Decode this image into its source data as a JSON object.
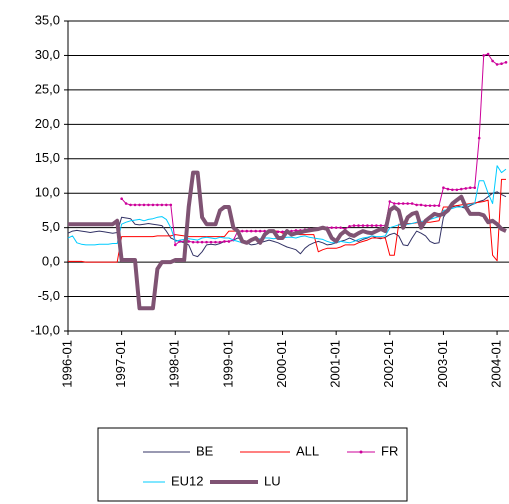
{
  "chart_data": {
    "type": "line",
    "categories": [
      "1996-01",
      null,
      null,
      null,
      null,
      null,
      null,
      null,
      null,
      null,
      null,
      null,
      "1997-01",
      null,
      null,
      null,
      null,
      null,
      null,
      null,
      null,
      null,
      null,
      null,
      "1998-01",
      null,
      null,
      null,
      null,
      null,
      null,
      null,
      null,
      null,
      null,
      null,
      "1999-01",
      null,
      null,
      null,
      null,
      null,
      null,
      null,
      null,
      null,
      null,
      null,
      "2000-01",
      null,
      null,
      null,
      null,
      null,
      null,
      null,
      null,
      null,
      null,
      null,
      "2001-01",
      null,
      null,
      null,
      null,
      null,
      null,
      null,
      null,
      null,
      null,
      null,
      "2002-01",
      null,
      null,
      null,
      null,
      null,
      null,
      null,
      null,
      null,
      null,
      null,
      "2003-01",
      null,
      null,
      null,
      null,
      null,
      null,
      null,
      null,
      null,
      null,
      null,
      "2004-01",
      null,
      null
    ],
    "ylim": [
      -10,
      35
    ],
    "yticks": [
      {
        "value": -10,
        "label": "-10,0"
      },
      {
        "value": -5,
        "label": "-5,0"
      },
      {
        "value": 0,
        "label": "0,0"
      },
      {
        "value": 5,
        "label": "5,0"
      },
      {
        "value": 10,
        "label": "10,0"
      },
      {
        "value": 15,
        "label": "15,0"
      },
      {
        "value": 20,
        "label": "20,0"
      },
      {
        "value": 25,
        "label": "25,0"
      },
      {
        "value": 30,
        "label": "30,0"
      },
      {
        "value": 35,
        "label": "35,0"
      }
    ],
    "grid": true,
    "legend": "bottom",
    "series": [
      {
        "name": "BE",
        "color": "#333366",
        "line_width": 1,
        "marker": false,
        "values": [
          4.2,
          4.5,
          4.6,
          4.5,
          4.4,
          4.3,
          4.4,
          4.5,
          4.4,
          4.3,
          4.2,
          4.3,
          6.5,
          6.4,
          6.3,
          5.5,
          5.4,
          5.5,
          5.6,
          5.5,
          5.4,
          5.3,
          4.5,
          3.5,
          3.2,
          3.0,
          2.8,
          2.5,
          1.0,
          0.8,
          1.5,
          2.5,
          2.6,
          2.5,
          2.7,
          3.0,
          3.0,
          3.2,
          3.5,
          3.3,
          2.8,
          2.5,
          2.6,
          2.8,
          3.0,
          3.2,
          3.0,
          2.8,
          2.5,
          2.2,
          2.0,
          1.8,
          1.2,
          2.0,
          2.5,
          2.8,
          3.0,
          2.8,
          2.5,
          2.6,
          2.8,
          3.0,
          3.2,
          3.5,
          3.2,
          3.0,
          3.3,
          3.5,
          3.8,
          3.5,
          3.4,
          3.6,
          4.0,
          4.2,
          3.8,
          2.5,
          2.4,
          3.5,
          4.5,
          4.2,
          3.8,
          3.0,
          2.7,
          2.8,
          6.5,
          7.5,
          8.0,
          8.2,
          8.0,
          7.8,
          8.2,
          8.5,
          8.8,
          9.0,
          9.5,
          10.0,
          10.2,
          9.8,
          9.5
        ]
      },
      {
        "name": "ALL",
        "color": "#ff0000",
        "line_width": 1,
        "marker": false,
        "values": [
          0.1,
          0.1,
          0.1,
          0.1,
          0,
          0,
          0,
          0,
          0,
          0,
          0,
          0,
          3.7,
          3.7,
          3.7,
          3.7,
          3.7,
          3.7,
          3.7,
          3.7,
          3.8,
          3.8,
          3.8,
          3.8,
          4.0,
          3.9,
          3.8,
          3.7,
          3.7,
          3.7,
          3.7,
          3.7,
          3.7,
          3.7,
          3.7,
          3.7,
          4.5,
          4.5,
          4.5,
          4.5,
          4.5,
          4.5,
          4.5,
          4.5,
          4.5,
          4.5,
          4.5,
          4.5,
          4.2,
          4.2,
          4.1,
          4.1,
          4.0,
          4.0,
          4.0,
          4.0,
          1.5,
          1.8,
          2.0,
          2.0,
          2.0,
          2.2,
          2.5,
          2.5,
          2.5,
          2.8,
          3.0,
          3.2,
          3.5,
          3.5,
          3.5,
          3.5,
          1.0,
          1.0,
          5.5,
          5.5,
          5.6,
          5.6,
          5.7,
          5.7,
          5.8,
          5.8,
          5.9,
          6.0,
          8.0,
          8.0,
          8.1,
          8.2,
          8.3,
          8.4,
          8.5,
          8.6,
          8.7,
          8.8,
          9.0,
          1.0,
          0.2,
          12.0,
          12.0
        ]
      },
      {
        "name": "FR",
        "color": "#cc0099",
        "line_width": 1,
        "marker": true,
        "values": [
          null,
          null,
          null,
          null,
          null,
          null,
          null,
          null,
          null,
          null,
          null,
          null,
          9.2,
          8.5,
          8.3,
          8.3,
          8.3,
          8.3,
          8.3,
          8.3,
          8.3,
          8.3,
          8.3,
          8.3,
          2.5,
          3.0,
          3.0,
          3.0,
          2.9,
          2.9,
          2.9,
          2.9,
          2.9,
          2.9,
          2.9,
          3.0,
          3.0,
          3.2,
          4.5,
          4.5,
          4.5,
          4.5,
          4.5,
          4.5,
          4.5,
          4.5,
          4.4,
          4.4,
          4.4,
          4.5,
          4.5,
          4.6,
          4.6,
          4.7,
          4.8,
          4.8,
          4.9,
          4.9,
          5.0,
          5.0,
          5.0,
          5.0,
          4.8,
          5.2,
          5.3,
          5.3,
          5.3,
          5.3,
          5.3,
          5.3,
          5.3,
          5.3,
          8.8,
          8.5,
          8.5,
          8.5,
          8.5,
          8.5,
          8.3,
          8.3,
          8.2,
          8.2,
          8.2,
          8.2,
          10.8,
          10.6,
          10.5,
          10.5,
          10.6,
          10.7,
          10.8,
          10.8,
          18.0,
          30.0,
          30.2,
          29.2,
          28.7,
          28.8,
          29.0
        ]
      },
      {
        "name": "EU12",
        "color": "#00ccff",
        "line_width": 1,
        "marker": false,
        "values": [
          3.5,
          3.8,
          2.8,
          2.6,
          2.5,
          2.5,
          2.5,
          2.6,
          2.6,
          2.6,
          2.7,
          2.7,
          5.5,
          5.8,
          6.0,
          6.1,
          6.2,
          6.0,
          6.2,
          6.3,
          6.5,
          6.6,
          6.2,
          5.0,
          3.0,
          3.2,
          3.3,
          3.4,
          3.3,
          3.2,
          3.5,
          3.6,
          3.5,
          3.4,
          3.6,
          3.5,
          3.5,
          3.2,
          3.0,
          2.8,
          3.0,
          3.2,
          3.3,
          3.4,
          3.5,
          3.5,
          3.4,
          3.5,
          3.5,
          3.6,
          3.6,
          3.5,
          3.7,
          3.8,
          3.6,
          3.5,
          3.4,
          3.3,
          3.0,
          2.8,
          2.8,
          3.0,
          2.9,
          2.8,
          3.0,
          3.3,
          3.5,
          3.6,
          3.8,
          3.7,
          3.7,
          3.8,
          5.0,
          5.2,
          5.4,
          5.4,
          5.5,
          5.6,
          5.8,
          5.9,
          6.0,
          6.2,
          6.4,
          6.6,
          7.5,
          7.6,
          7.8,
          8.0,
          8.0,
          8.2,
          8.4,
          8.5,
          11.8,
          11.8,
          10.0,
          8.5,
          14.0,
          13.0,
          13.5
        ]
      },
      {
        "name": "LU",
        "color": "#7f5373",
        "line_width": 4,
        "marker": false,
        "values": [
          5.5,
          5.5,
          5.5,
          5.5,
          5.5,
          5.5,
          5.5,
          5.5,
          5.5,
          5.5,
          5.5,
          6.0,
          0.3,
          0.3,
          0.3,
          0.3,
          -6.7,
          -6.7,
          -6.7,
          -6.7,
          -1.0,
          0.0,
          0.0,
          0.0,
          0.3,
          0.3,
          0.3,
          8.0,
          13.0,
          13.0,
          6.5,
          5.5,
          5.5,
          5.5,
          7.5,
          8.0,
          8.0,
          5.0,
          4.5,
          3.0,
          2.8,
          3.2,
          3.5,
          2.8,
          4.0,
          4.5,
          4.5,
          3.5,
          3.5,
          4.5,
          4.0,
          4.2,
          4.3,
          4.5,
          4.6,
          4.7,
          4.8,
          5.0,
          4.8,
          3.5,
          3.0,
          4.0,
          4.5,
          4.0,
          3.8,
          4.2,
          4.5,
          4.3,
          4.2,
          4.5,
          4.8,
          4.5,
          7.5,
          8.0,
          7.5,
          5.0,
          6.5,
          7.0,
          7.2,
          5.0,
          6.0,
          6.5,
          7.0,
          6.8,
          7.0,
          7.5,
          8.5,
          9.0,
          9.5,
          8.0,
          7.0,
          7.0,
          7.0,
          6.8,
          5.8,
          6.0,
          5.5,
          4.8,
          4.5
        ]
      }
    ]
  }
}
